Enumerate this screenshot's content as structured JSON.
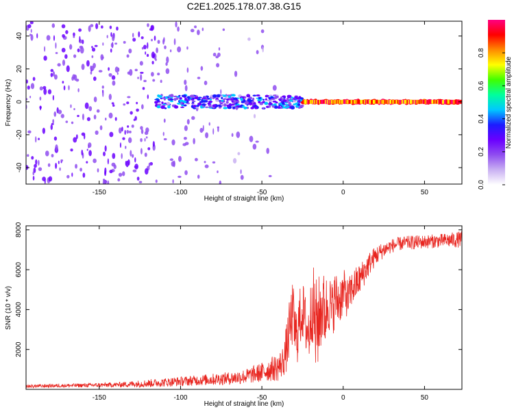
{
  "page_title": "C2E1.2025.178.07.38.G15",
  "colors": {
    "snr_line": "#e8251f",
    "axis": "#000000",
    "spectrogram_colormap": [
      "#ffffff",
      "#c9b0f2",
      "#8f4df0",
      "#6a00ff",
      "#1c1cff",
      "#00c8ff",
      "#00ff9c",
      "#40ff00",
      "#ffff00",
      "#ff8a00",
      "#ff0000",
      "#ff0080"
    ]
  },
  "chart_data": [
    {
      "type": "heatmap",
      "xlabel": "Height of straight line (km)",
      "ylabel": "Frequency (Hz)",
      "xlim": [
        -195,
        73
      ],
      "ylim": [
        -50,
        49
      ],
      "x_ticks": [
        -150,
        -100,
        -50,
        0,
        50
      ],
      "y_ticks": [
        -40,
        -20,
        0,
        20,
        40
      ],
      "x_tick_labels": [
        "-150",
        "-100",
        "-50",
        "0",
        "50"
      ],
      "y_tick_labels": [
        "-40",
        "-20",
        "0",
        "20",
        "40"
      ],
      "colorbar": {
        "label": "Normalized spectral amplitude",
        "range": [
          0,
          1
        ],
        "ticks": [
          0,
          0.2,
          0.4,
          0.6,
          0.8
        ],
        "tick_labels": [
          "0.0",
          "0.2",
          "0.4",
          "0.6",
          "0.8"
        ]
      },
      "regions": [
        {
          "x_range": [
            -195,
            -115
          ],
          "freq_range": [
            -50,
            49
          ],
          "amplitude": 0.1
        },
        {
          "x_range": [
            -115,
            -75
          ],
          "freq_range": [
            -50,
            49
          ],
          "amplitude": 0.05
        },
        {
          "x_range": [
            -75,
            -40
          ],
          "freq_range": [
            -50,
            49
          ],
          "amplitude": 0.02
        },
        {
          "x_range": [
            -115,
            -25
          ],
          "freq_range": [
            -4,
            4
          ],
          "amplitude": 0.3
        },
        {
          "x_range": [
            -25,
            73
          ],
          "freq_range": [
            -1,
            1
          ],
          "amplitude": 0.95
        }
      ]
    },
    {
      "type": "line",
      "xlabel": "Height of straight line (km)",
      "ylabel": "SNR (10 * v/v)",
      "xlim": [
        -195,
        73
      ],
      "ylim": [
        0,
        8200
      ],
      "x_ticks": [
        -150,
        -100,
        -50,
        0,
        50
      ],
      "y_ticks": [
        2000,
        4000,
        6000,
        8000
      ],
      "x_tick_labels": [
        "-150",
        "-100",
        "-50",
        "0",
        "50"
      ],
      "y_tick_labels": [
        "2000",
        "4000",
        "6000",
        "8000"
      ],
      "series": [
        {
          "x": [
            -195,
            -180,
            -160,
            -140,
            -120,
            -110,
            -100,
            -90,
            -80,
            -70,
            -60,
            -50,
            -45,
            -40,
            -37,
            -35,
            -33,
            -31,
            -29,
            -27,
            -25,
            -23,
            -21,
            -19,
            -17,
            -15,
            -13,
            -11,
            -9,
            -7,
            -5,
            -3,
            -1,
            1,
            3,
            5,
            7,
            10,
            13,
            16,
            20,
            25,
            30,
            35,
            40,
            50,
            60,
            70,
            73
          ],
          "y": [
            150,
            180,
            200,
            230,
            300,
            350,
            400,
            450,
            500,
            550,
            650,
            850,
            1000,
            1100,
            1400,
            2000,
            3000,
            3800,
            2500,
            3400,
            4000,
            3200,
            2800,
            4500,
            3000,
            3500,
            4200,
            3800,
            4500,
            3900,
            4600,
            4400,
            4700,
            4900,
            4500,
            5000,
            5200,
            5500,
            5900,
            6300,
            6700,
            7000,
            7200,
            7300,
            7350,
            7400,
            7450,
            7500,
            7550
          ],
          "noise_amplitude": [
            80,
            90,
            100,
            120,
            200,
            220,
            240,
            260,
            300,
            320,
            380,
            500,
            600,
            700,
            800,
            1200,
            1500,
            1600,
            1600,
            1600,
            1500,
            1500,
            1600,
            2000,
            2600,
            2200,
            2000,
            1800,
            1600,
            1500,
            1400,
            1300,
            1200,
            1100,
            1000,
            900,
            900,
            800,
            700,
            600,
            500,
            400,
            350,
            350,
            350,
            350,
            350,
            400,
            400
          ]
        }
      ]
    }
  ]
}
